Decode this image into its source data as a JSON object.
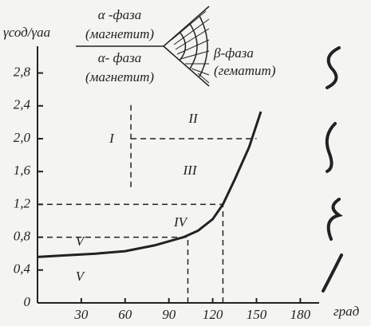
{
  "chart_data": {
    "type": "line",
    "y_label": "γсод/γаа",
    "x_label": "град",
    "x": [
      0,
      20,
      40,
      60,
      80,
      100,
      110,
      120,
      127,
      135,
      145,
      153
    ],
    "series": [
      {
        "color": "#222222",
        "values": [
          0.56,
          0.58,
          0.6,
          0.63,
          0.7,
          0.8,
          0.88,
          1.02,
          1.2,
          1.5,
          1.9,
          2.33
        ]
      }
    ],
    "reference_lines": [
      {
        "x": [
          0,
          103
        ],
        "y": [
          0.8,
          0.8
        ]
      },
      {
        "x": [
          103,
          103
        ],
        "y": [
          0,
          0.8
        ]
      },
      {
        "x": [
          0,
          127
        ],
        "y": [
          1.2,
          1.2
        ]
      },
      {
        "x": [
          127,
          127
        ],
        "y": [
          0,
          1.2
        ]
      },
      {
        "x": [
          64,
          150
        ],
        "y": [
          2.0,
          2.0
        ]
      },
      {
        "x": [
          64,
          64
        ],
        "y": [
          1.41,
          2.43
        ]
      }
    ],
    "xlim": [
      0,
      190
    ],
    "ylim": [
      0,
      3.1
    ],
    "xticks": [
      30,
      60,
      90,
      120,
      150,
      180
    ],
    "yticks": [
      0,
      {
        "value": 0.4,
        "label": "0,4"
      },
      {
        "value": 0.8,
        "label": "0,8"
      },
      {
        "value": 1.2,
        "label": "1,2"
      },
      {
        "value": 1.6,
        "label": "1,6"
      },
      {
        "value": 2.0,
        "label": "2,0"
      },
      {
        "value": 2.4,
        "label": "2,4"
      },
      {
        "value": 2.8,
        "label": "2,8"
      }
    ],
    "region_labels": [
      "I",
      "II",
      "III",
      "IV",
      "V",
      "V"
    ],
    "phase_labels": [
      "α -фаза",
      "(магнетит)",
      "α- фаза",
      "(магнетит)",
      "β-фаза",
      "(гематит)"
    ]
  }
}
